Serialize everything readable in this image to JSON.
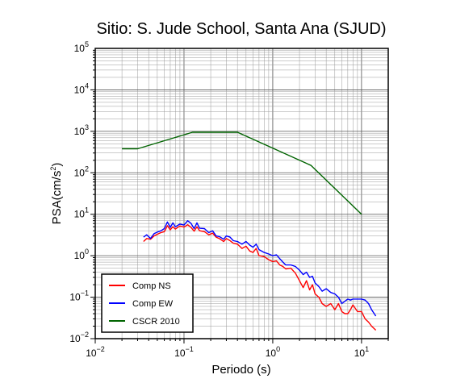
{
  "chart_data": {
    "type": "line",
    "title": "Sitio: S. Jude School, Santa Ana (SJUD)",
    "xlabel": "Periodo (s)",
    "ylabel_main": "PSA(cm/s",
    "ylabel_sup": "2",
    "ylabel_close": ")",
    "x_scale": "log",
    "y_scale": "log",
    "xlim": [
      0.01,
      20
    ],
    "ylim": [
      0.01,
      100000
    ],
    "grid": true,
    "legend_position": "bottom-left",
    "x_ticks": [
      {
        "base": "10",
        "exp": "−2",
        "value": 0.01
      },
      {
        "base": "10",
        "exp": "−1",
        "value": 0.1
      },
      {
        "base": "10",
        "exp": "0",
        "value": 1
      },
      {
        "base": "10",
        "exp": "1",
        "value": 10
      }
    ],
    "y_ticks": [
      {
        "base": "10",
        "exp": "−2",
        "value": 0.01
      },
      {
        "base": "10",
        "exp": "−1",
        "value": 0.1
      },
      {
        "base": "10",
        "exp": "0",
        "value": 1
      },
      {
        "base": "10",
        "exp": "1",
        "value": 10
      },
      {
        "base": "10",
        "exp": "2",
        "value": 100
      },
      {
        "base": "10",
        "exp": "3",
        "value": 1000
      },
      {
        "base": "10",
        "exp": "4",
        "value": 10000
      },
      {
        "base": "10",
        "exp": "5",
        "value": 100000
      }
    ],
    "series": [
      {
        "name": "Comp NS",
        "color": "#ff0000",
        "x": [
          0.035,
          0.038,
          0.042,
          0.046,
          0.05,
          0.055,
          0.06,
          0.065,
          0.07,
          0.075,
          0.08,
          0.085,
          0.09,
          0.1,
          0.11,
          0.12,
          0.13,
          0.14,
          0.15,
          0.17,
          0.19,
          0.21,
          0.23,
          0.25,
          0.28,
          0.3,
          0.33,
          0.36,
          0.4,
          0.45,
          0.5,
          0.55,
          0.6,
          0.65,
          0.7,
          0.8,
          0.9,
          1.0,
          1.1,
          1.2,
          1.3,
          1.4,
          1.6,
          1.8,
          2.0,
          2.2,
          2.4,
          2.6,
          2.8,
          3.0,
          3.3,
          3.6,
          4.0,
          4.5,
          5.0,
          5.5,
          6.0,
          6.5,
          7.0,
          7.5,
          8.0,
          9.0,
          10.0,
          11.0,
          12.0,
          13.0,
          14.5
        ],
        "y": [
          2.2,
          2.6,
          2.5,
          3.0,
          3.3,
          3.6,
          3.8,
          5.3,
          4.2,
          5.0,
          4.4,
          4.8,
          5.2,
          4.9,
          5.6,
          4.8,
          3.9,
          5.0,
          4.0,
          3.8,
          3.2,
          3.5,
          2.8,
          2.6,
          2.2,
          2.6,
          2.3,
          2.0,
          1.9,
          1.5,
          1.7,
          1.3,
          1.2,
          1.5,
          1.0,
          0.95,
          0.8,
          0.72,
          0.75,
          0.6,
          0.55,
          0.48,
          0.5,
          0.38,
          0.25,
          0.17,
          0.25,
          0.15,
          0.2,
          0.12,
          0.1,
          0.07,
          0.06,
          0.07,
          0.05,
          0.07,
          0.045,
          0.04,
          0.04,
          0.05,
          0.065,
          0.045,
          0.045,
          0.03,
          0.025,
          0.02,
          0.016
        ]
      },
      {
        "name": "Comp EW",
        "color": "#0000ff",
        "x": [
          0.035,
          0.038,
          0.042,
          0.046,
          0.05,
          0.055,
          0.06,
          0.065,
          0.07,
          0.075,
          0.08,
          0.085,
          0.09,
          0.1,
          0.11,
          0.12,
          0.13,
          0.14,
          0.15,
          0.17,
          0.19,
          0.21,
          0.23,
          0.25,
          0.28,
          0.3,
          0.33,
          0.36,
          0.4,
          0.45,
          0.5,
          0.55,
          0.6,
          0.65,
          0.7,
          0.8,
          0.9,
          1.0,
          1.1,
          1.2,
          1.3,
          1.4,
          1.6,
          1.8,
          2.0,
          2.2,
          2.4,
          2.6,
          2.8,
          3.0,
          3.3,
          3.6,
          4.0,
          4.5,
          5.0,
          5.5,
          6.0,
          6.5,
          7.0,
          7.5,
          8.0,
          9.0,
          10.0,
          11.0,
          12.0,
          13.0,
          14.5
        ],
        "y": [
          2.8,
          3.2,
          2.6,
          3.4,
          3.7,
          4.0,
          4.5,
          6.5,
          4.8,
          6.2,
          5.0,
          5.4,
          5.8,
          5.5,
          7.0,
          6.0,
          4.5,
          6.2,
          4.6,
          4.5,
          3.6,
          4.0,
          3.0,
          2.9,
          2.5,
          3.0,
          2.8,
          2.3,
          2.2,
          1.9,
          2.2,
          1.8,
          1.6,
          1.9,
          1.4,
          1.2,
          1.1,
          1.0,
          1.05,
          0.85,
          0.7,
          0.6,
          0.6,
          0.55,
          0.45,
          0.35,
          0.4,
          0.3,
          0.32,
          0.22,
          0.18,
          0.14,
          0.16,
          0.13,
          0.12,
          0.1,
          0.07,
          0.08,
          0.09,
          0.085,
          0.09,
          0.09,
          0.09,
          0.085,
          0.07,
          0.05,
          0.035
        ]
      },
      {
        "name": "CSCR 2010",
        "color": "#006400",
        "x": [
          0.02,
          0.03,
          0.125,
          0.4,
          2.7,
          10.0
        ],
        "y": [
          380,
          380,
          950,
          950,
          150,
          10
        ]
      }
    ]
  }
}
